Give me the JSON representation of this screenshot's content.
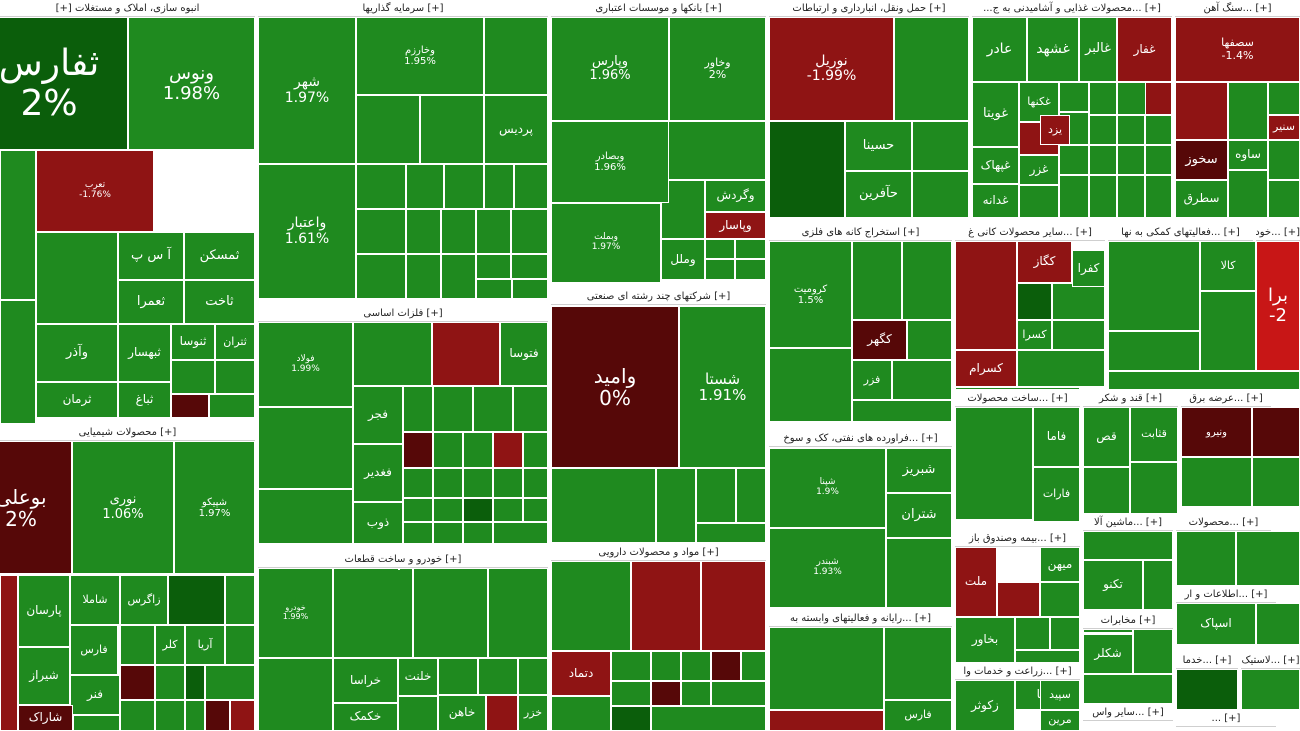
{
  "colors": {
    "green": "#1f8a1f",
    "dark_green": "#0b5e0b",
    "red": "#8f1414",
    "dark_red": "#560808",
    "bright_red": "#c81616",
    "header_bg": "#ffffff"
  },
  "sectors": [
    {
      "id": "s01",
      "title": "انبوه سازی، املاک و مستغلات [+]"
    },
    {
      "id": "s02",
      "title": "[+] سرمایه گذاریها"
    },
    {
      "id": "s03",
      "title": "[+] بانکها و موسسات اعتباری"
    },
    {
      "id": "s04",
      "title": "[+] حمل ونقل، انبارداری و ارتباطات"
    },
    {
      "id": "s05",
      "title": "[+] ...محصولات غذایی و آشامیدنی به ج..."
    },
    {
      "id": "s06",
      "title": "[+] ...سنگ آهن"
    },
    {
      "id": "s07",
      "title": "[+] فلزات اساسی"
    },
    {
      "id": "s08",
      "title": "[+] شرکتهای چند رشته ای صنعتی"
    },
    {
      "id": "s09",
      "title": "[+] استخراج کانه های فلزی"
    },
    {
      "id": "s10",
      "title": "[+] ...سایر محصولات کانی غ"
    },
    {
      "id": "s11",
      "title": "[+] ...فعالیتهای کمکی به نها"
    },
    {
      "id": "s12",
      "title": "[+] ...خودرو"
    },
    {
      "id": "s13",
      "title": "[+] محصولات شیمیایی"
    },
    {
      "id": "s14",
      "title": "[+] ...فراورده های نفتی، کک و سوخ"
    },
    {
      "id": "s15",
      "title": "[+] ...ساخت محصولات"
    },
    {
      "id": "s16",
      "title": "[+] قند و شکر"
    },
    {
      "id": "s17",
      "title": "[+] ...عرضه برق"
    },
    {
      "id": "s18",
      "title": "[+] خودرو و ساخت قطعات"
    },
    {
      "id": "s19",
      "title": "[+] مواد و محصولات دارویی"
    },
    {
      "id": "s20",
      "title": "[+] ...بیمه وصندوق باز"
    },
    {
      "id": "s21",
      "title": "[+] ...ماشین آلا"
    },
    {
      "id": "s22",
      "title": "[+] ...محصولات"
    },
    {
      "id": "s23",
      "title": "[+] ...رایانه و فعالیتهای وابسته به"
    },
    {
      "id": "s24",
      "title": "[+] ...اطلاعات و ار"
    },
    {
      "id": "s25",
      "title": "[+] مخابرات"
    },
    {
      "id": "s26",
      "title": "[+] ...زراعت و خدمات وا"
    },
    {
      "id": "s27",
      "title": "[+] ...خدما"
    },
    {
      "id": "s28",
      "title": "[+] ...لاستیک"
    },
    {
      "id": "s29",
      "title": "[+] ...سایر واس"
    },
    {
      "id": "s30",
      "title": "[+] ..."
    }
  ],
  "tiles": [
    {
      "id": "t001",
      "name": "ثفارس",
      "pct": "2%",
      "color": "dark_green"
    },
    {
      "id": "t002",
      "name": "ونوس",
      "pct": "1.98%",
      "color": "green"
    },
    {
      "id": "t003",
      "name": "شهر",
      "pct": "1.97%",
      "color": "green"
    },
    {
      "id": "t004",
      "name": "وخارزم",
      "pct": "1.95%",
      "color": "green"
    },
    {
      "id": "t005",
      "name": "پردیس",
      "pct": "",
      "color": "green"
    },
    {
      "id": "t006",
      "name": "وپارس",
      "pct": "1.96%",
      "color": "green"
    },
    {
      "id": "t007",
      "name": "وخاور",
      "pct": "2%",
      "color": "green"
    },
    {
      "id": "t008",
      "name": "وبصادر",
      "pct": "1.96%",
      "color": "green"
    },
    {
      "id": "t009",
      "name": "وبملت",
      "pct": "1.97%",
      "color": "green"
    },
    {
      "id": "t010",
      "name": "وگردش",
      "pct": "",
      "color": "green"
    },
    {
      "id": "t011",
      "name": "وپاسار",
      "pct": "",
      "color": "red"
    },
    {
      "id": "t012",
      "name": "وملل",
      "pct": "",
      "color": "green"
    },
    {
      "id": "t013",
      "name": "واعتبار",
      "pct": "1.61%",
      "color": "green"
    },
    {
      "id": "t014",
      "name": "نوریل",
      "pct": "-1.99%",
      "color": "red"
    },
    {
      "id": "t015",
      "name": "حسینا",
      "pct": "",
      "color": "green"
    },
    {
      "id": "t016",
      "name": "حآفرین",
      "pct": "",
      "color": "green"
    },
    {
      "id": "t017",
      "name": "عادر",
      "pct": "",
      "color": "green"
    },
    {
      "id": "t018",
      "name": "غشهد",
      "pct": "",
      "color": "green"
    },
    {
      "id": "t019",
      "name": "غالبر",
      "pct": "",
      "color": "green"
    },
    {
      "id": "t020",
      "name": "غفار",
      "pct": "",
      "color": "red"
    },
    {
      "id": "t021",
      "name": "غویتا",
      "pct": "",
      "color": "green"
    },
    {
      "id": "t022",
      "name": "غکنها",
      "pct": "",
      "color": "green"
    },
    {
      "id": "t023",
      "name": "غپهاک",
      "pct": "",
      "color": "green"
    },
    {
      "id": "t024",
      "name": "غدانه",
      "pct": "",
      "color": "green"
    },
    {
      "id": "t025",
      "name": "غزر",
      "pct": "",
      "color": "green"
    },
    {
      "id": "t026",
      "name": "سخوز",
      "pct": "",
      "color": "dark_red"
    },
    {
      "id": "t027",
      "name": "سصفها",
      "pct": "-1.4%",
      "color": "red"
    },
    {
      "id": "t028",
      "name": "ساوه",
      "pct": "",
      "color": "green"
    },
    {
      "id": "t029",
      "name": "سنیر",
      "pct": "",
      "color": "red"
    },
    {
      "id": "t030",
      "name": "سطرق",
      "pct": "",
      "color": "green"
    },
    {
      "id": "t031",
      "name": "تعرب",
      "pct": "-1.76%",
      "color": "red"
    },
    {
      "id": "t032",
      "name": "آ س پ",
      "pct": "",
      "color": "green"
    },
    {
      "id": "t033",
      "name": "ثمسکن",
      "pct": "",
      "color": "green"
    },
    {
      "id": "t034",
      "name": "ثعمرا",
      "pct": "",
      "color": "green"
    },
    {
      "id": "t035",
      "name": "ثاخت",
      "pct": "",
      "color": "green"
    },
    {
      "id": "t036",
      "name": "ثبهسار",
      "pct": "",
      "color": "green"
    },
    {
      "id": "t037",
      "name": "ثنوسا",
      "pct": "",
      "color": "green"
    },
    {
      "id": "t038",
      "name": "ثتران",
      "pct": "",
      "color": "green"
    },
    {
      "id": "t039",
      "name": "وآذر",
      "pct": "",
      "color": "green"
    },
    {
      "id": "t040",
      "name": "ثرمان",
      "pct": "",
      "color": "green"
    },
    {
      "id": "t041",
      "name": "ثباغ",
      "pct": "",
      "color": "green"
    },
    {
      "id": "t042",
      "name": "فولاد",
      "pct": "1.99%",
      "color": "green"
    },
    {
      "id": "t043",
      "name": "فتوسا",
      "pct": "",
      "color": "green"
    },
    {
      "id": "t044",
      "name": "فجر",
      "pct": "",
      "color": "green"
    },
    {
      "id": "t045",
      "name": "فغدیر",
      "pct": "",
      "color": "green"
    },
    {
      "id": "t046",
      "name": "ذوب",
      "pct": "",
      "color": "green"
    },
    {
      "id": "t047",
      "name": "وامید",
      "pct": "0%",
      "color": "dark_red"
    },
    {
      "id": "t048",
      "name": "شستا",
      "pct": "1.91%",
      "color": "green"
    },
    {
      "id": "t049",
      "name": "کرومیت",
      "pct": "1.5%",
      "color": "green"
    },
    {
      "id": "t050",
      "name": "کگهر",
      "pct": "",
      "color": "dark_red"
    },
    {
      "id": "t051",
      "name": "فزر",
      "pct": "",
      "color": "green"
    },
    {
      "id": "t052",
      "name": "کگاز",
      "pct": "",
      "color": "red"
    },
    {
      "id": "t053",
      "name": "کفرا",
      "pct": "",
      "color": "green"
    },
    {
      "id": "t054",
      "name": "کسرا",
      "pct": "",
      "color": "green"
    },
    {
      "id": "t055",
      "name": "کسرام",
      "pct": "",
      "color": "red"
    },
    {
      "id": "t056",
      "name": "کالا",
      "pct": "",
      "color": "green"
    },
    {
      "id": "t057",
      "name": "بوعلی",
      "pct": "2%",
      "color": "dark_red"
    },
    {
      "id": "t058",
      "name": "نوری",
      "pct": "1.06%",
      "color": "green"
    },
    {
      "id": "t059",
      "name": "شپیکو",
      "pct": "1.97%",
      "color": "green"
    },
    {
      "id": "t060",
      "name": "پارسان",
      "pct": "",
      "color": "green"
    },
    {
      "id": "t061",
      "name": "شاملا",
      "pct": "",
      "color": "green"
    },
    {
      "id": "t062",
      "name": "زاگرس",
      "pct": "",
      "color": "green"
    },
    {
      "id": "t063",
      "name": "فارس",
      "pct": "",
      "color": "green"
    },
    {
      "id": "t064",
      "name": "کلر",
      "pct": "",
      "color": "green"
    },
    {
      "id": "t065",
      "name": "آریا",
      "pct": "",
      "color": "green"
    },
    {
      "id": "t066",
      "name": "شیراز",
      "pct": "",
      "color": "green"
    },
    {
      "id": "t067",
      "name": "فنر",
      "pct": "",
      "color": "green"
    },
    {
      "id": "t068",
      "name": "شاراک",
      "pct": "",
      "color": "dark_red"
    },
    {
      "id": "t069",
      "name": "شبریز",
      "pct": "",
      "color": "green"
    },
    {
      "id": "t070",
      "name": "شتران",
      "pct": "",
      "color": "green"
    },
    {
      "id": "t071",
      "name": "شپنا",
      "pct": "1.9%",
      "color": "green"
    },
    {
      "id": "t072",
      "name": "شبندر",
      "pct": "1.93%",
      "color": "green"
    },
    {
      "id": "t073",
      "name": "فاما",
      "pct": "",
      "color": "green"
    },
    {
      "id": "t074",
      "name": "فارات",
      "pct": "",
      "color": "green"
    },
    {
      "id": "t075",
      "name": "قثابت",
      "pct": "",
      "color": "green"
    },
    {
      "id": "t076",
      "name": "قص",
      "pct": "",
      "color": "green"
    },
    {
      "id": "t077",
      "name": "ونیرو",
      "pct": "",
      "color": "dark_red"
    },
    {
      "id": "t078",
      "name": "خودرو",
      "pct": "1.99%",
      "color": "green"
    },
    {
      "id": "t079",
      "name": "خراسا",
      "pct": "",
      "color": "green"
    },
    {
      "id": "t080",
      "name": "خلنت",
      "pct": "",
      "color": "green"
    },
    {
      "id": "t081",
      "name": "خاهن",
      "pct": "",
      "color": "green"
    },
    {
      "id": "t082",
      "name": "خزر",
      "pct": "",
      "color": "green"
    },
    {
      "id": "t083",
      "name": "خکمک",
      "pct": "",
      "color": "green"
    },
    {
      "id": "t084",
      "name": "دتماد",
      "pct": "",
      "color": "red"
    },
    {
      "id": "t085",
      "name": "ملت",
      "pct": "",
      "color": "red"
    },
    {
      "id": "t086",
      "name": "میهن",
      "pct": "",
      "color": "green"
    },
    {
      "id": "t087",
      "name": "بخاور",
      "pct": "",
      "color": "green"
    },
    {
      "id": "t088",
      "name": "تکنو",
      "pct": "",
      "color": "green"
    },
    {
      "id": "t089",
      "name": "اسپاک",
      "pct": "",
      "color": "green"
    },
    {
      "id": "t090",
      "name": "زکوثر",
      "pct": "",
      "color": "green"
    },
    {
      "id": "t091",
      "name": "زفکا",
      "pct": "",
      "color": "green"
    },
    {
      "id": "t092",
      "name": "سپید",
      "pct": "",
      "color": "green"
    },
    {
      "id": "t093",
      "name": "مرین",
      "pct": "",
      "color": "green"
    },
    {
      "id": "t094",
      "name": "یزد",
      "pct": "",
      "color": "red"
    },
    {
      "id": "t095",
      "name": "برا",
      "pct": "-2",
      "color": "bright_red"
    },
    {
      "id": "t096",
      "name": "شکلر",
      "pct": "",
      "color": "green"
    },
    {
      "id": "t097",
      "name": "فارس",
      "pct": "",
      "color": "green"
    }
  ]
}
